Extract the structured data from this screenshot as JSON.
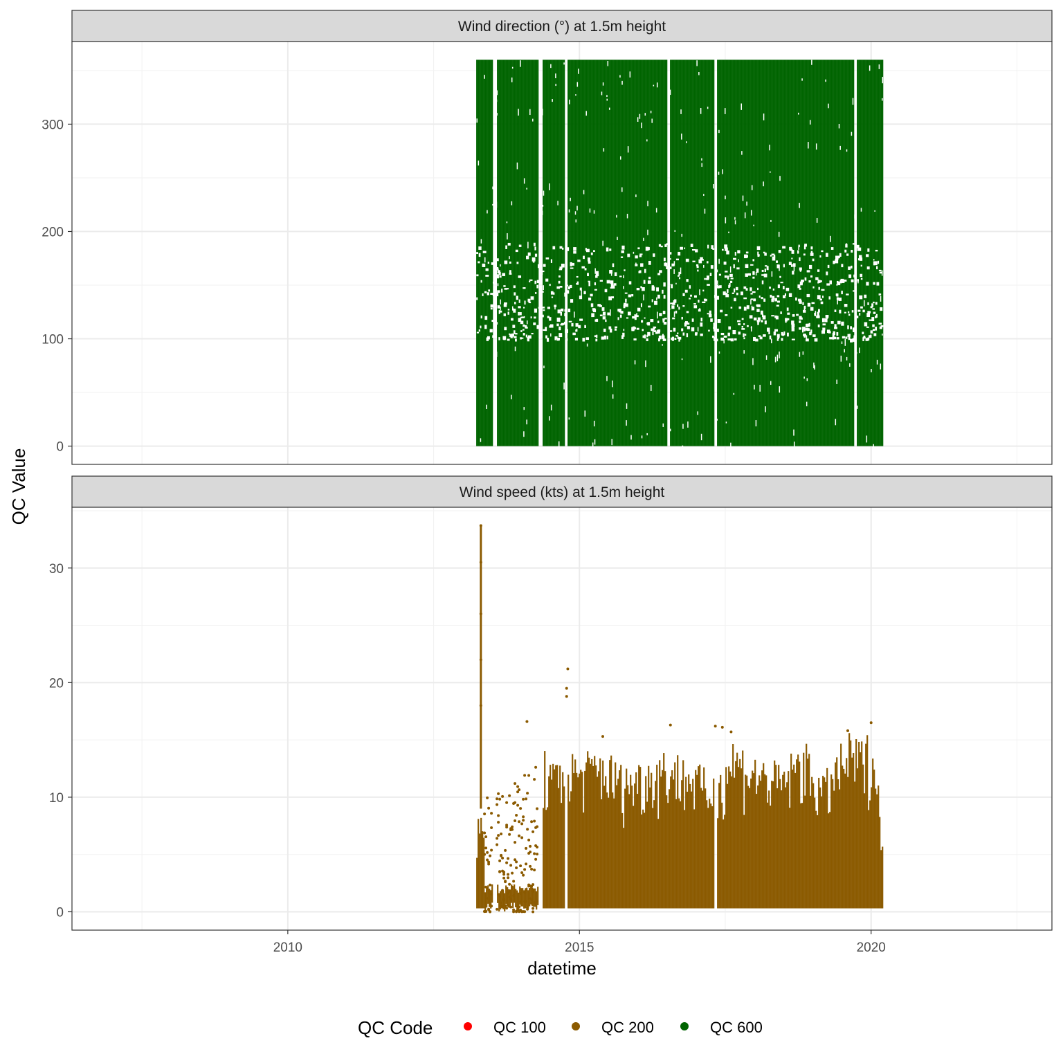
{
  "chart_data": {
    "type": "scatter",
    "xlabel": "datetime",
    "ylabel": "QC Value",
    "x_ticks": [
      "2010",
      "2015",
      "2020"
    ],
    "xlim": [
      2006.3,
      2023.1
    ],
    "grid": true,
    "legend": {
      "title": "QC Code",
      "placement": "bottom",
      "entries": [
        {
          "label": "QC 100",
          "color": "#FF0000"
        },
        {
          "label": "QC 200",
          "color": "#8B5A00"
        },
        {
          "label": "QC 600",
          "color": "#006400"
        }
      ]
    },
    "panels": [
      {
        "title": "Wind direction (°) at 1.5m height",
        "ylim": [
          -17,
          377
        ],
        "y_ticks": [
          "0",
          "100",
          "200",
          "300"
        ],
        "y_tick_values": [
          0,
          100,
          200,
          300
        ],
        "series": "QC 600",
        "color": "#006400",
        "x_range": [
          2013.23,
          2020.19
        ],
        "y_range": [
          0,
          360
        ],
        "gaps": [
          2013.54,
          2014.32,
          2014.77,
          2016.51,
          2017.33,
          2019.72
        ],
        "sparse_band": [
          100,
          190
        ]
      },
      {
        "title": "Wind speed (kts) at 1.5m height",
        "ylim": [
          -1.6,
          35.3
        ],
        "y_ticks": [
          "0",
          "10",
          "20",
          "30"
        ],
        "y_tick_values": [
          0,
          10,
          20,
          30
        ],
        "series": "QC 200",
        "color": "#8B5A00",
        "x_range": [
          2013.23,
          2020.19
        ],
        "gaps": [
          2013.54,
          2014.32,
          2014.77,
          2017.33
        ],
        "sparse_period": [
          2013.35,
          2014.3
        ],
        "envelope": [
          [
            2013.23,
            8
          ],
          [
            2013.4,
            10
          ],
          [
            2013.8,
            11
          ],
          [
            2014.2,
            13
          ],
          [
            2014.35,
            14.5
          ],
          [
            2014.54,
            13
          ],
          [
            2014.71,
            14.5
          ],
          [
            2015.01,
            14
          ],
          [
            2015.37,
            14.7
          ],
          [
            2015.72,
            13
          ],
          [
            2016.08,
            13.5
          ],
          [
            2016.44,
            14.5
          ],
          [
            2016.91,
            13.5
          ],
          [
            2017.27,
            12
          ],
          [
            2017.62,
            15.5
          ],
          [
            2017.98,
            14
          ],
          [
            2018.46,
            13
          ],
          [
            2018.81,
            15.3
          ],
          [
            2019.17,
            12
          ],
          [
            2019.58,
            15.7
          ],
          [
            2019.88,
            15.2
          ],
          [
            2020.0,
            16.5
          ],
          [
            2020.19,
            8
          ]
        ],
        "outliers": [
          [
            2013.31,
            33.7
          ],
          [
            2013.31,
            30.5
          ],
          [
            2013.31,
            26
          ],
          [
            2013.31,
            22
          ],
          [
            2013.31,
            18
          ],
          [
            2014.1,
            16.6
          ],
          [
            2014.8,
            21.2
          ],
          [
            2014.78,
            19.5
          ],
          [
            2014.78,
            18.8
          ],
          [
            2015.4,
            15.3
          ],
          [
            2016.56,
            16.3
          ],
          [
            2017.33,
            16.2
          ],
          [
            2017.45,
            16.1
          ],
          [
            2017.6,
            15.7
          ],
          [
            2019.6,
            15.8
          ],
          [
            2020.0,
            16.5
          ]
        ]
      }
    ]
  }
}
